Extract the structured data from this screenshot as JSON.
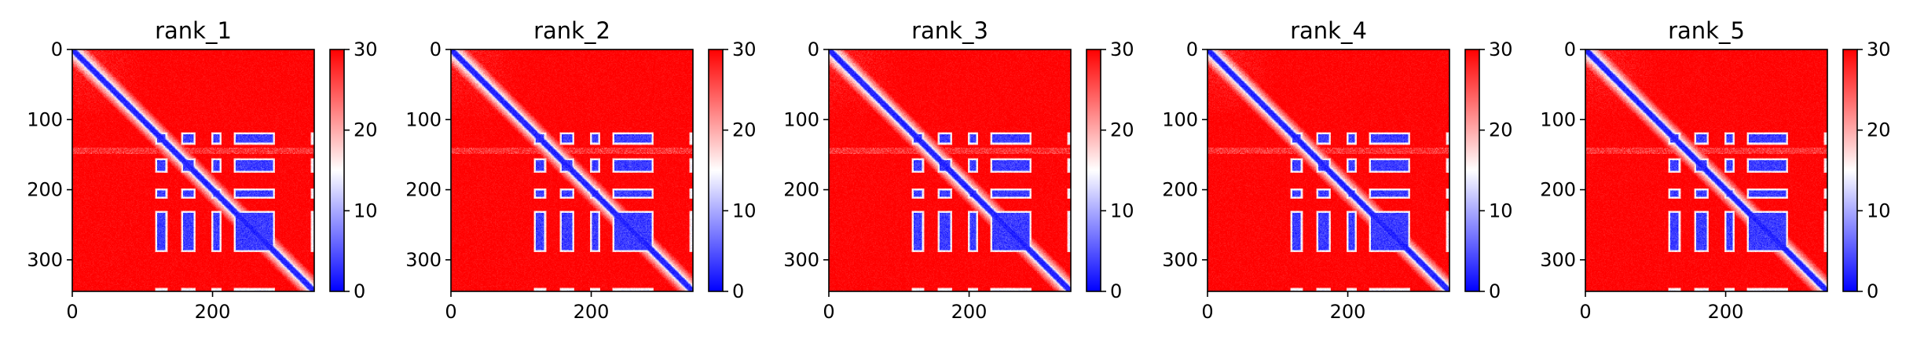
{
  "figure": {
    "background": "#ffffff"
  },
  "chart_data": [
    {
      "type": "heatmap",
      "title": "rank_1",
      "x_ticks": [
        0,
        200
      ],
      "y_ticks": [
        0,
        100,
        200,
        300
      ],
      "matrix_size": 345,
      "x_range": [
        0,
        345
      ],
      "y_range": [
        0,
        345
      ],
      "y_inverted": true,
      "colormap": "bwr",
      "colormap_colors": [
        "#0000ff",
        "#ffffff",
        "#ff0000"
      ],
      "value_range": [
        0,
        30
      ],
      "colorbar_ticks": [
        0,
        10,
        20,
        30
      ],
      "domain_blocks": [
        [
          118,
          135
        ],
        [
          155,
          175
        ],
        [
          198,
          212
        ],
        [
          230,
          288
        ],
        [
          340,
          345
        ]
      ],
      "row_streak": [
        140,
        148
      ],
      "diagonal_band": true
    },
    {
      "type": "heatmap",
      "title": "rank_2",
      "x_ticks": [
        0,
        200
      ],
      "y_ticks": [
        0,
        100,
        200,
        300
      ],
      "matrix_size": 345,
      "x_range": [
        0,
        345
      ],
      "y_range": [
        0,
        345
      ],
      "y_inverted": true,
      "colormap": "bwr",
      "colormap_colors": [
        "#0000ff",
        "#ffffff",
        "#ff0000"
      ],
      "value_range": [
        0,
        30
      ],
      "colorbar_ticks": [
        0,
        10,
        20,
        30
      ],
      "domain_blocks": [
        [
          118,
          135
        ],
        [
          155,
          175
        ],
        [
          198,
          212
        ],
        [
          230,
          288
        ],
        [
          340,
          345
        ]
      ],
      "row_streak": [
        140,
        148
      ],
      "diagonal_band": true
    },
    {
      "type": "heatmap",
      "title": "rank_3",
      "x_ticks": [
        0,
        200
      ],
      "y_ticks": [
        0,
        100,
        200,
        300
      ],
      "matrix_size": 345,
      "x_range": [
        0,
        345
      ],
      "y_range": [
        0,
        345
      ],
      "y_inverted": true,
      "colormap": "bwr",
      "colormap_colors": [
        "#0000ff",
        "#ffffff",
        "#ff0000"
      ],
      "value_range": [
        0,
        30
      ],
      "colorbar_ticks": [
        0,
        10,
        20,
        30
      ],
      "domain_blocks": [
        [
          118,
          135
        ],
        [
          155,
          175
        ],
        [
          198,
          212
        ],
        [
          230,
          288
        ],
        [
          340,
          345
        ]
      ],
      "row_streak": [
        140,
        148
      ],
      "diagonal_band": true
    },
    {
      "type": "heatmap",
      "title": "rank_4",
      "x_ticks": [
        0,
        200
      ],
      "y_ticks": [
        0,
        100,
        200,
        300
      ],
      "matrix_size": 345,
      "x_range": [
        0,
        345
      ],
      "y_range": [
        0,
        345
      ],
      "y_inverted": true,
      "colormap": "bwr",
      "colormap_colors": [
        "#0000ff",
        "#ffffff",
        "#ff0000"
      ],
      "value_range": [
        0,
        30
      ],
      "colorbar_ticks": [
        0,
        10,
        20,
        30
      ],
      "domain_blocks": [
        [
          118,
          135
        ],
        [
          155,
          175
        ],
        [
          198,
          212
        ],
        [
          230,
          288
        ],
        [
          340,
          345
        ]
      ],
      "row_streak": [
        140,
        148
      ],
      "diagonal_band": true
    },
    {
      "type": "heatmap",
      "title": "rank_5",
      "x_ticks": [
        0,
        200
      ],
      "y_ticks": [
        0,
        100,
        200,
        300
      ],
      "matrix_size": 345,
      "x_range": [
        0,
        345
      ],
      "y_range": [
        0,
        345
      ],
      "y_inverted": true,
      "colormap": "bwr",
      "colormap_colors": [
        "#0000ff",
        "#ffffff",
        "#ff0000"
      ],
      "value_range": [
        0,
        30
      ],
      "colorbar_ticks": [
        0,
        10,
        20,
        30
      ],
      "domain_blocks": [
        [
          118,
          135
        ],
        [
          155,
          175
        ],
        [
          198,
          212
        ],
        [
          230,
          288
        ],
        [
          340,
          345
        ]
      ],
      "row_streak": [
        140,
        148
      ],
      "diagonal_band": true
    }
  ]
}
